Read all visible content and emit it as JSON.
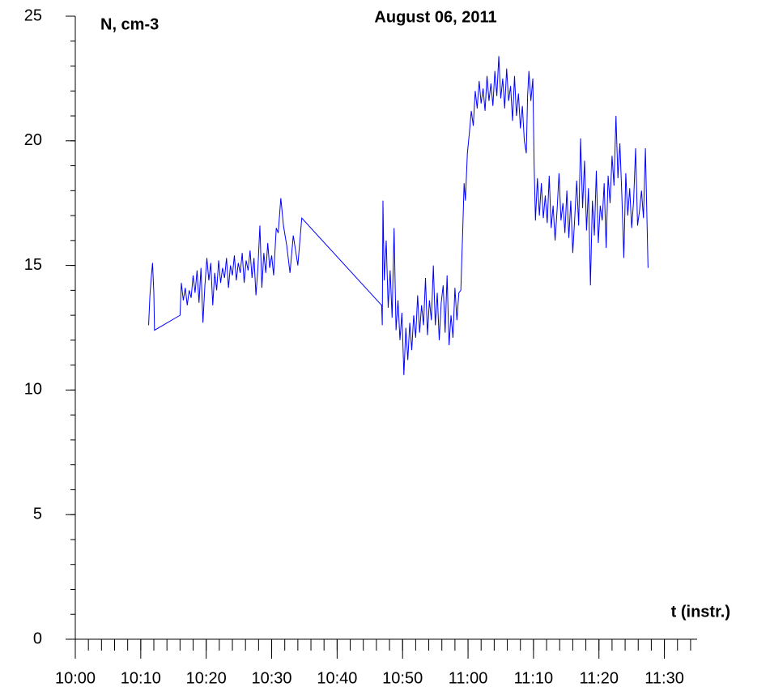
{
  "chart_data": {
    "type": "line",
    "title": "August 06, 2011",
    "y_label": "N, cm-3",
    "x_label": "t (instr.)",
    "color": "#0000ff",
    "xlim": [
      600,
      695
    ],
    "ylim": [
      0,
      25
    ],
    "xticks": [
      {
        "value": 600,
        "label": "10:00"
      },
      {
        "value": 610,
        "label": "10:10"
      },
      {
        "value": 620,
        "label": "10:20"
      },
      {
        "value": 630,
        "label": "10:30"
      },
      {
        "value": 640,
        "label": "10:40"
      },
      {
        "value": 650,
        "label": "10:50"
      },
      {
        "value": 660,
        "label": "11:00"
      },
      {
        "value": 670,
        "label": "11:10"
      },
      {
        "value": 680,
        "label": "11:20"
      },
      {
        "value": 690,
        "label": "11:30"
      }
    ],
    "yticks": [
      0,
      5,
      10,
      15,
      20,
      25
    ],
    "xminor": 2,
    "yminor": 1,
    "x": [
      611.2,
      611.4,
      611.6,
      611.8,
      612.0,
      612.1,
      616.0,
      616.2,
      616.5,
      616.8,
      617.1,
      617.4,
      617.7,
      618.0,
      618.3,
      618.6,
      618.9,
      619.2,
      619.5,
      619.8,
      620.1,
      620.4,
      620.7,
      621.0,
      621.3,
      621.6,
      621.9,
      622.2,
      622.5,
      622.8,
      623.1,
      623.4,
      623.7,
      624.0,
      624.3,
      624.6,
      624.9,
      625.2,
      625.5,
      625.8,
      626.1,
      626.4,
      626.7,
      627.0,
      627.3,
      627.6,
      627.9,
      628.2,
      628.5,
      628.8,
      629.1,
      629.4,
      629.7,
      630.0,
      630.3,
      630.7,
      631.0,
      631.4,
      631.8,
      632.3,
      632.8,
      633.3,
      634.0,
      634.6,
      646.8,
      646.9,
      647.0,
      647.2,
      647.5,
      647.8,
      648.1,
      648.4,
      648.7,
      649.0,
      649.3,
      649.6,
      649.9,
      650.2,
      650.5,
      650.8,
      651.1,
      651.4,
      651.7,
      652.0,
      652.3,
      652.6,
      652.9,
      653.2,
      653.5,
      653.8,
      654.1,
      654.4,
      654.7,
      655.0,
      655.3,
      655.6,
      655.9,
      656.2,
      656.5,
      656.8,
      657.1,
      657.4,
      657.7,
      658.0,
      658.3,
      658.6,
      658.9,
      659.2,
      659.4,
      659.6,
      659.9,
      660.2,
      660.5,
      660.8,
      661.1,
      661.4,
      661.7,
      662.0,
      662.3,
      662.6,
      662.9,
      663.2,
      663.5,
      663.8,
      664.1,
      664.4,
      664.7,
      665.0,
      665.3,
      665.6,
      665.9,
      666.2,
      666.5,
      666.8,
      667.1,
      667.4,
      667.7,
      668.0,
      668.3,
      668.6,
      668.9,
      669.1,
      669.3,
      669.6,
      669.9,
      670.1,
      670.3,
      670.6,
      670.9,
      671.2,
      671.5,
      671.8,
      672.1,
      672.4,
      672.7,
      673.0,
      673.3,
      673.6,
      673.9,
      674.2,
      674.5,
      674.8,
      675.1,
      675.4,
      675.7,
      676.0,
      676.3,
      676.6,
      676.9,
      677.2,
      677.5,
      677.8,
      678.1,
      678.4,
      678.7,
      679.0,
      679.3,
      679.6,
      679.9,
      680.2,
      680.5,
      680.8,
      681.1,
      681.4,
      681.7,
      682.0,
      682.3,
      682.6,
      682.9,
      683.2,
      683.5,
      683.8,
      684.1,
      684.4,
      684.7,
      685.0,
      685.3,
      685.6,
      685.9,
      686.2,
      686.5,
      686.8,
      687.1,
      687.3,
      687.5
    ],
    "values": [
      12.6,
      13.8,
      14.5,
      15.1,
      13.9,
      12.4,
      13.0,
      14.3,
      13.6,
      14.1,
      13.4,
      14.0,
      13.7,
      14.6,
      13.9,
      14.8,
      13.5,
      14.9,
      12.7,
      14.2,
      15.3,
      14.4,
      15.1,
      13.4,
      14.7,
      14.0,
      15.2,
      14.3,
      14.9,
      14.5,
      15.3,
      14.1,
      15.0,
      14.6,
      15.4,
      14.4,
      15.1,
      14.7,
      15.5,
      14.3,
      15.2,
      14.8,
      15.6,
      14.5,
      15.3,
      13.8,
      14.9,
      16.6,
      14.1,
      15.5,
      14.7,
      15.9,
      14.9,
      15.4,
      14.6,
      16.5,
      16.3,
      17.7,
      16.6,
      15.8,
      14.7,
      16.2,
      15.0,
      16.9,
      13.4,
      12.6,
      17.6,
      14.4,
      16.0,
      13.3,
      14.8,
      12.9,
      16.5,
      12.4,
      13.6,
      12.0,
      13.1,
      10.6,
      12.5,
      11.2,
      12.7,
      11.6,
      13.0,
      12.1,
      13.8,
      12.3,
      13.4,
      12.6,
      14.5,
      12.2,
      13.6,
      12.8,
      15.0,
      12.6,
      13.9,
      12.0,
      13.5,
      14.2,
      12.3,
      14.6,
      11.8,
      13.0,
      12.1,
      14.1,
      12.8,
      13.9,
      14.0,
      16.5,
      18.3,
      17.6,
      19.5,
      20.3,
      21.2,
      20.6,
      22.0,
      21.3,
      22.4,
      21.5,
      22.1,
      21.2,
      22.6,
      21.6,
      22.3,
      21.4,
      22.8,
      21.8,
      23.4,
      21.7,
      22.5,
      21.3,
      22.9,
      21.6,
      22.2,
      20.8,
      22.6,
      21.0,
      21.9,
      20.5,
      21.4,
      20.0,
      19.5,
      21.8,
      22.8,
      21.6,
      22.5,
      19.0,
      16.8,
      18.5,
      17.0,
      18.3,
      16.9,
      17.8,
      16.7,
      18.6,
      16.5,
      17.4,
      16.0,
      17.2,
      18.7,
      16.8,
      17.5,
      16.3,
      18.0,
      16.1,
      17.6,
      15.5,
      16.9,
      18.4,
      16.6,
      20.1,
      17.3,
      19.2,
      16.4,
      18.1,
      14.2,
      17.6,
      16.2,
      18.8,
      15.9,
      17.4,
      16.8,
      18.3,
      15.7,
      18.6,
      17.5,
      19.4,
      18.2,
      21.0,
      18.5,
      19.9,
      17.8,
      15.3,
      18.7,
      17.0,
      18.1,
      16.5,
      17.6,
      19.7,
      16.6,
      17.2,
      18.0,
      16.9,
      19.7,
      17.3,
      14.9
    ]
  }
}
